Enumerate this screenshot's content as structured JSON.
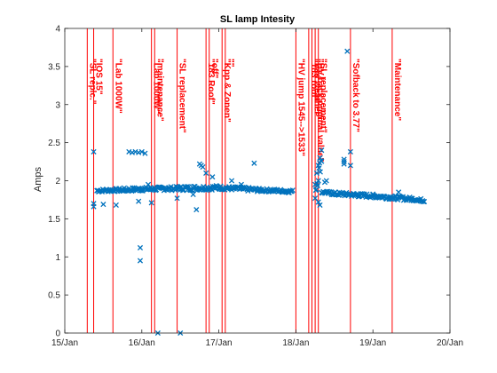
{
  "chart_data": {
    "type": "scatter",
    "title": "SL lamp Intesity",
    "xlabel": "",
    "ylabel": "Amps",
    "x_axis": {
      "unit": "day",
      "ticks": [
        {
          "value": "15/Jan",
          "label": "15/Jan"
        },
        {
          "value": "16/Jan",
          "label": "16/Jan"
        },
        {
          "value": "17/Jan",
          "label": "17/Jan"
        },
        {
          "value": "18/Jan",
          "label": "18/Jan"
        },
        {
          "value": "19/Jan",
          "label": "19/Jan"
        },
        {
          "value": "20/Jan",
          "label": "20/Jan"
        }
      ],
      "range": [
        "15/Jan 00:00",
        "20/Jan 00:00"
      ]
    },
    "y_axis": {
      "ticks": [
        "0",
        "0.5",
        "1",
        "1.5",
        "2",
        "2.5",
        "3",
        "3.5",
        "4"
      ],
      "range": [
        0,
        4
      ]
    },
    "grid": false,
    "series": [
      {
        "color": "#0072BD",
        "marker": "x",
        "dense_segments": [
          {
            "from": "15/Jan 10:00",
            "to": "15/Jan 18:00",
            "y0": 1.87,
            "y1": 1.88,
            "noise": 0.02
          },
          {
            "from": "15/Jan 18:00",
            "to": "16/Jan 00:00",
            "y0": 1.88,
            "y1": 1.89,
            "noise": 0.025
          },
          {
            "from": "16/Jan 00:00",
            "to": "16/Jan 12:00",
            "y0": 1.89,
            "y1": 1.9,
            "noise": 0.025
          },
          {
            "from": "16/Jan 12:00",
            "to": "17/Jan 00:00",
            "y0": 1.9,
            "y1": 1.91,
            "noise": 0.03
          },
          {
            "from": "17/Jan 00:00",
            "to": "17/Jan 12:00",
            "y0": 1.91,
            "y1": 1.88,
            "noise": 0.025
          },
          {
            "from": "17/Jan 12:00",
            "to": "17/Jan 23:00",
            "y0": 1.88,
            "y1": 1.86,
            "noise": 0.02
          },
          {
            "from": "18/Jan 06:00",
            "to": "18/Jan 08:00",
            "y0": 1.85,
            "y1": 2.3,
            "noise": 0.1
          },
          {
            "from": "18/Jan 08:00",
            "to": "18/Jan 12:00",
            "y0": 1.85,
            "y1": 1.83,
            "noise": 0.02
          },
          {
            "from": "18/Jan 12:00",
            "to": "19/Jan 00:00",
            "y0": 1.83,
            "y1": 1.8,
            "noise": 0.025
          },
          {
            "from": "19/Jan 00:00",
            "to": "19/Jan 12:00",
            "y0": 1.8,
            "y1": 1.76,
            "noise": 0.025
          },
          {
            "from": "19/Jan 12:00",
            "to": "19/Jan 16:00",
            "y0": 1.76,
            "y1": 1.74,
            "noise": 0.02
          }
        ],
        "points": [
          [
            "15/Jan 09:00",
            2.38
          ],
          [
            "15/Jan 09:00",
            1.7
          ],
          [
            "15/Jan 09:00",
            1.66
          ],
          [
            "15/Jan 12:00",
            1.69
          ],
          [
            "15/Jan 16:00",
            1.68
          ],
          [
            "15/Jan 20:00",
            2.38
          ],
          [
            "15/Jan 21:00",
            2.37
          ],
          [
            "15/Jan 22:00",
            2.38
          ],
          [
            "15/Jan 23:00",
            2.37
          ],
          [
            "16/Jan 00:00",
            2.38
          ],
          [
            "16/Jan 01:00",
            2.36
          ],
          [
            "15/Jan 23:00",
            1.73
          ],
          [
            "15/Jan 23:30",
            1.12
          ],
          [
            "15/Jan 23:30",
            0.95
          ],
          [
            "16/Jan 02:00",
            1.95
          ],
          [
            "16/Jan 03:00",
            1.71
          ],
          [
            "16/Jan 05:00",
            0.0
          ],
          [
            "16/Jan 11:00",
            1.77
          ],
          [
            "16/Jan 12:00",
            0.0
          ],
          [
            "16/Jan 16:00",
            1.82
          ],
          [
            "16/Jan 17:00",
            1.62
          ],
          [
            "16/Jan 18:00",
            2.22
          ],
          [
            "16/Jan 18:30",
            2.2
          ],
          [
            "16/Jan 19:00",
            2.18
          ],
          [
            "16/Jan 20:00",
            2.1
          ],
          [
            "16/Jan 22:00",
            2.05
          ],
          [
            "17/Jan 04:00",
            2.0
          ],
          [
            "17/Jan 07:00",
            1.95
          ],
          [
            "17/Jan 11:00",
            2.23
          ],
          [
            "18/Jan 06:00",
            1.95
          ],
          [
            "18/Jan 06:30",
            2.1
          ],
          [
            "18/Jan 07:00",
            2.2
          ],
          [
            "18/Jan 07:30",
            2.3
          ],
          [
            "18/Jan 08:00",
            2.4
          ],
          [
            "18/Jan 07:00",
            1.72
          ],
          [
            "18/Jan 07:30",
            1.68
          ],
          [
            "18/Jan 09:00",
            1.98
          ],
          [
            "18/Jan 09:30",
            2.0
          ],
          [
            "18/Jan 15:00",
            2.25
          ],
          [
            "18/Jan 15:00",
            2.28
          ],
          [
            "18/Jan 15:00",
            2.22
          ],
          [
            "18/Jan 17:00",
            2.38
          ],
          [
            "18/Jan 17:00",
            2.2
          ],
          [
            "18/Jan 16:00",
            3.7
          ],
          [
            "19/Jan 08:00",
            1.85
          ]
        ]
      }
    ],
    "annotations": [
      {
        "x": "15/Jan 07:00",
        "text": "\"SL replc.\"",
        "color": "#ff0000"
      },
      {
        "x": "15/Jan 09:00",
        "text": "\"IOS 15\"",
        "color": "#ff0000"
      },
      {
        "x": "15/Jan 15:00",
        "text": "\"Lab 1000W\"",
        "color": "#ff0000"
      },
      {
        "x": "16/Jan 03:00",
        "text": "\"Lab 1000W\"",
        "color": "#ff0000"
      },
      {
        "x": "16/Jan 04:00",
        "text": "\"maintenance\"",
        "color": "#ff0000"
      },
      {
        "x": "16/Jan 11:00",
        "text": "\"SL replacement\"",
        "color": "#ff0000"
      },
      {
        "x": "16/Jan 20:00",
        "text": "\"183 Roof\"",
        "color": "#ff0000"
      },
      {
        "x": "16/Jan 21:00",
        "text": "\"off\"",
        "color": "#ff0000"
      },
      {
        "x": "17/Jan 01:00",
        "text": "\"Kpp & Zonen\"",
        "color": "#ff0000"
      },
      {
        "x": "17/Jan 02:00",
        "text": "\"\"",
        "color": "#ff0000"
      },
      {
        "x": "18/Jan 00:00",
        "text": "\"HV jump 1545-->1533\"",
        "color": "#ff0000"
      },
      {
        "x": "18/Jan 04:00",
        "text": "\"183 roof\"",
        "color": "#ff0000"
      },
      {
        "x": "18/Jan 05:00",
        "text": "\"bad weather\"",
        "color": "#ff0000"
      },
      {
        "x": "18/Jan 06:00",
        "text": "\"HV back original value\"",
        "color": "#ff0000"
      },
      {
        "x": "18/Jan 07:00",
        "text": "\"SL replacement\"",
        "color": "#ff0000"
      },
      {
        "x": "18/Jan 17:00",
        "text": "\"Sofback to 3.77\"",
        "color": "#ff0000"
      },
      {
        "x": "19/Jan 06:00",
        "text": "\"Maintenance\"",
        "color": "#ff0000"
      }
    ]
  }
}
